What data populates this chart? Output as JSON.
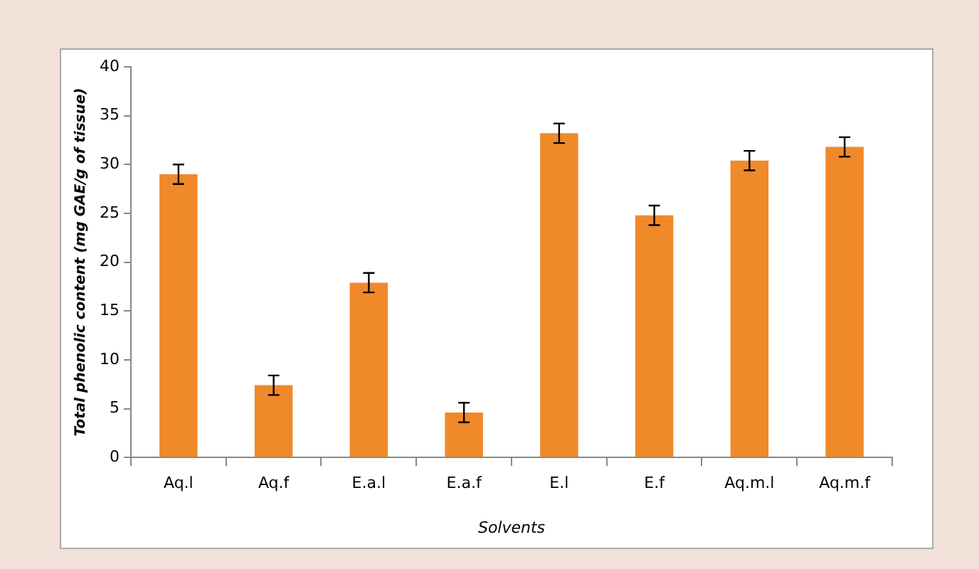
{
  "chart_data": {
    "type": "bar",
    "xlabel": "Solvents",
    "ylabel": "Total phenolic content (mg GAE/g of tissue)",
    "categories": [
      "Aq.l",
      "Aq.f",
      "E.a.l",
      "E.a.f",
      "E.l",
      "E.f",
      "Aq.m.l",
      "Aq.m.f"
    ],
    "values": [
      29,
      7.4,
      17.9,
      4.6,
      33.2,
      24.8,
      30.4,
      31.8
    ],
    "errors": [
      1,
      1,
      1,
      1,
      1,
      1,
      1,
      1
    ],
    "color": "#f0892a",
    "ylim": [
      0,
      40
    ],
    "yticks": [
      0,
      5,
      10,
      15,
      20,
      25,
      30,
      35,
      40
    ],
    "grid": false,
    "legend": false
  }
}
